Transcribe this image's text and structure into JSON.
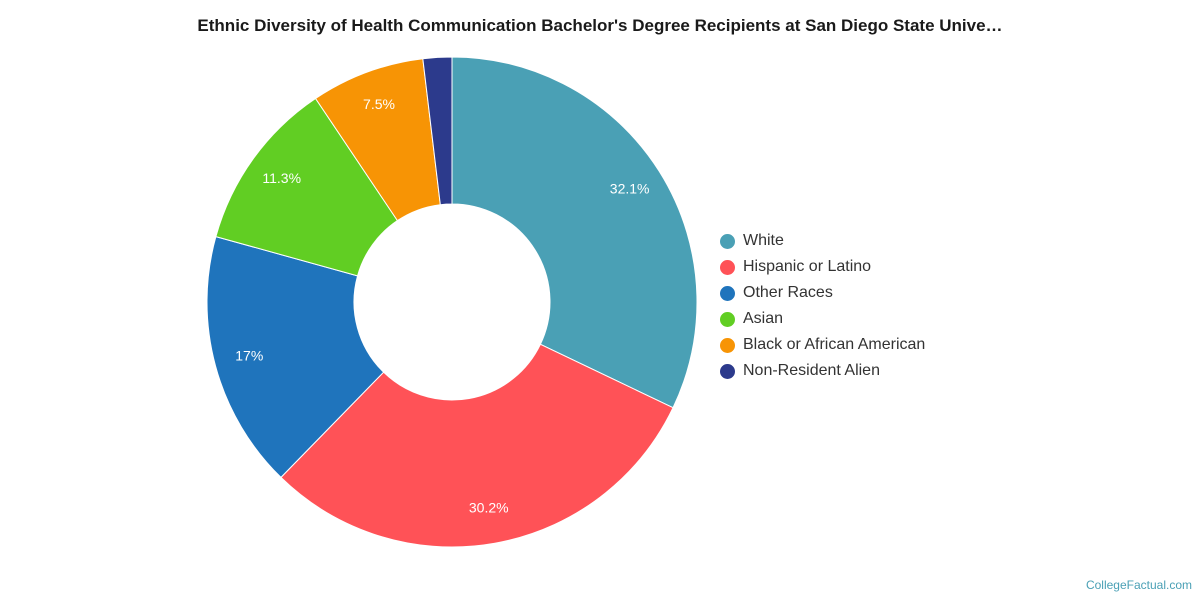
{
  "chart_data": {
    "type": "pie",
    "title": "Ethnic Diversity of Health Communication Bachelor's Degree Recipients at San Diego State Unive…",
    "categories": [
      "White",
      "Hispanic or Latino",
      "Other Races",
      "Asian",
      "Black or African American",
      "Non-Resident Alien"
    ],
    "values": [
      32.1,
      30.2,
      17.0,
      11.3,
      7.5,
      1.9
    ],
    "data_labels": [
      "32.1%",
      "30.2%",
      "17%",
      "11.3%",
      "7.5%",
      ""
    ],
    "colors": [
      "#4aa0b5",
      "#ff5257",
      "#1f74bc",
      "#61ce23",
      "#f79405",
      "#2c3a8c"
    ],
    "donut": true,
    "legend_position": "right"
  },
  "footer": {
    "credit": "CollegeFactual.com"
  }
}
